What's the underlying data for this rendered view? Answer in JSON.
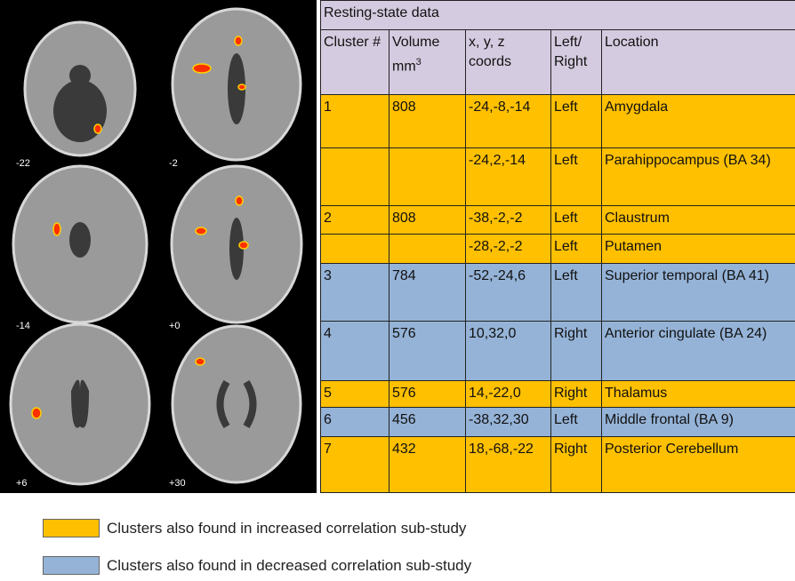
{
  "slices": [
    "-22",
    "-2",
    "-14",
    "+0",
    "+6",
    "+30"
  ],
  "table": {
    "title": "Resting-state data",
    "headers": [
      "Cluster #",
      {
        "text": "Volume mm",
        "sup": "3"
      },
      "x, y, z coords",
      "Left/ Right",
      "Location"
    ],
    "rows": [
      {
        "group": 0,
        "cells": [
          "1",
          "808",
          "-24,-8,-14",
          "Left",
          "Amygdala"
        ]
      },
      {
        "group": 0,
        "cells": [
          null,
          null,
          "-24,2,-14",
          "Left",
          "Parahippocampus (BA 34)"
        ]
      },
      {
        "group": 0,
        "cells": [
          "2",
          "808",
          "-38,-2,-2",
          "Left",
          "Claustrum"
        ]
      },
      {
        "group": 0,
        "cells": [
          null,
          null,
          "-28,-2,-2",
          "Left",
          "Putamen"
        ]
      },
      {
        "group": 1,
        "cells": [
          "3",
          "784",
          "-52,-24,6",
          "Left",
          "Superior temporal (BA 41)"
        ]
      },
      {
        "group": 1,
        "cells": [
          "4",
          "576",
          "10,32,0",
          "Right",
          "Anterior cingulate (BA 24)"
        ]
      },
      {
        "group": 0,
        "cells": [
          "5",
          "576",
          "14,-22,0",
          "Right",
          "Thalamus"
        ]
      },
      {
        "group": 1,
        "cells": [
          "6",
          "456",
          "-38,32,30",
          "Left",
          "Middle frontal (BA 9)"
        ]
      },
      {
        "group": 0,
        "cells": [
          "7",
          "432",
          "18,-68,-22",
          "Right",
          "Posterior Cerebellum"
        ]
      }
    ]
  },
  "legend": [
    {
      "color": "#ffc000",
      "label": "Clusters also found in  increased correlation sub-study"
    },
    {
      "color": "#95b3d7",
      "label": "Clusters also found in  decreased correlation sub-study"
    }
  ]
}
